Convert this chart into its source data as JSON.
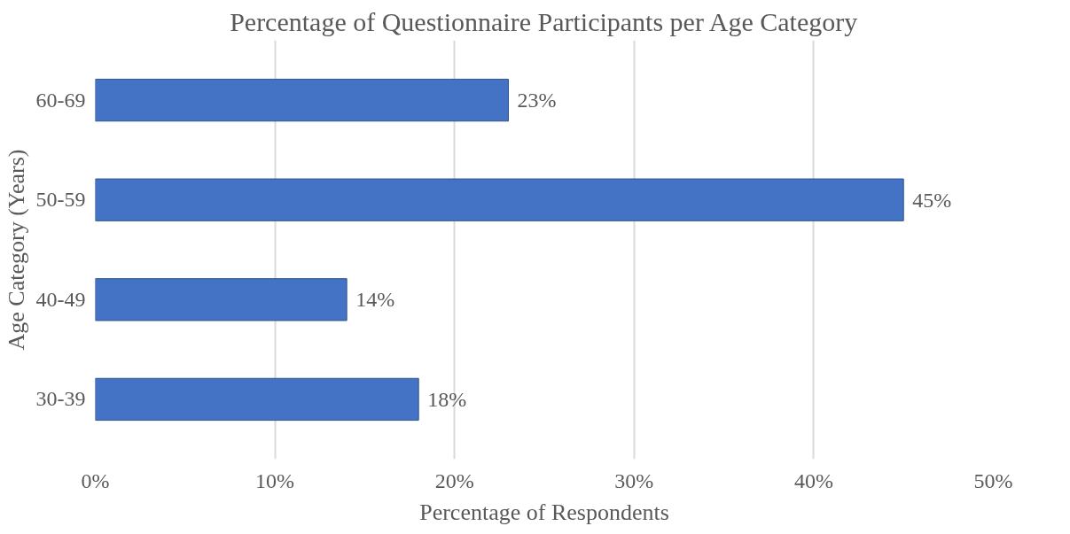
{
  "chart_data": {
    "type": "bar",
    "orientation": "horizontal",
    "title": "Percentage of Questionnaire Participants per Age Category",
    "xlabel": "Percentage of Respondents",
    "ylabel": "Age Category (Years)",
    "categories": [
      "60-69",
      "50-59",
      "40-49",
      "30-39"
    ],
    "values": [
      23,
      45,
      14,
      18
    ],
    "color": "#4472c4",
    "value_labels": [
      "23%",
      "45%",
      "14%",
      "18%"
    ],
    "xlim": [
      0,
      50
    ],
    "xticks": [
      {
        "value": 0,
        "label": "0%"
      },
      {
        "value": 10,
        "label": "10%"
      },
      {
        "value": 20,
        "label": "20%"
      },
      {
        "value": 30,
        "label": "30%"
      },
      {
        "value": 40,
        "label": "40%"
      },
      {
        "value": 50,
        "label": "50%"
      }
    ],
    "grid": "x"
  }
}
